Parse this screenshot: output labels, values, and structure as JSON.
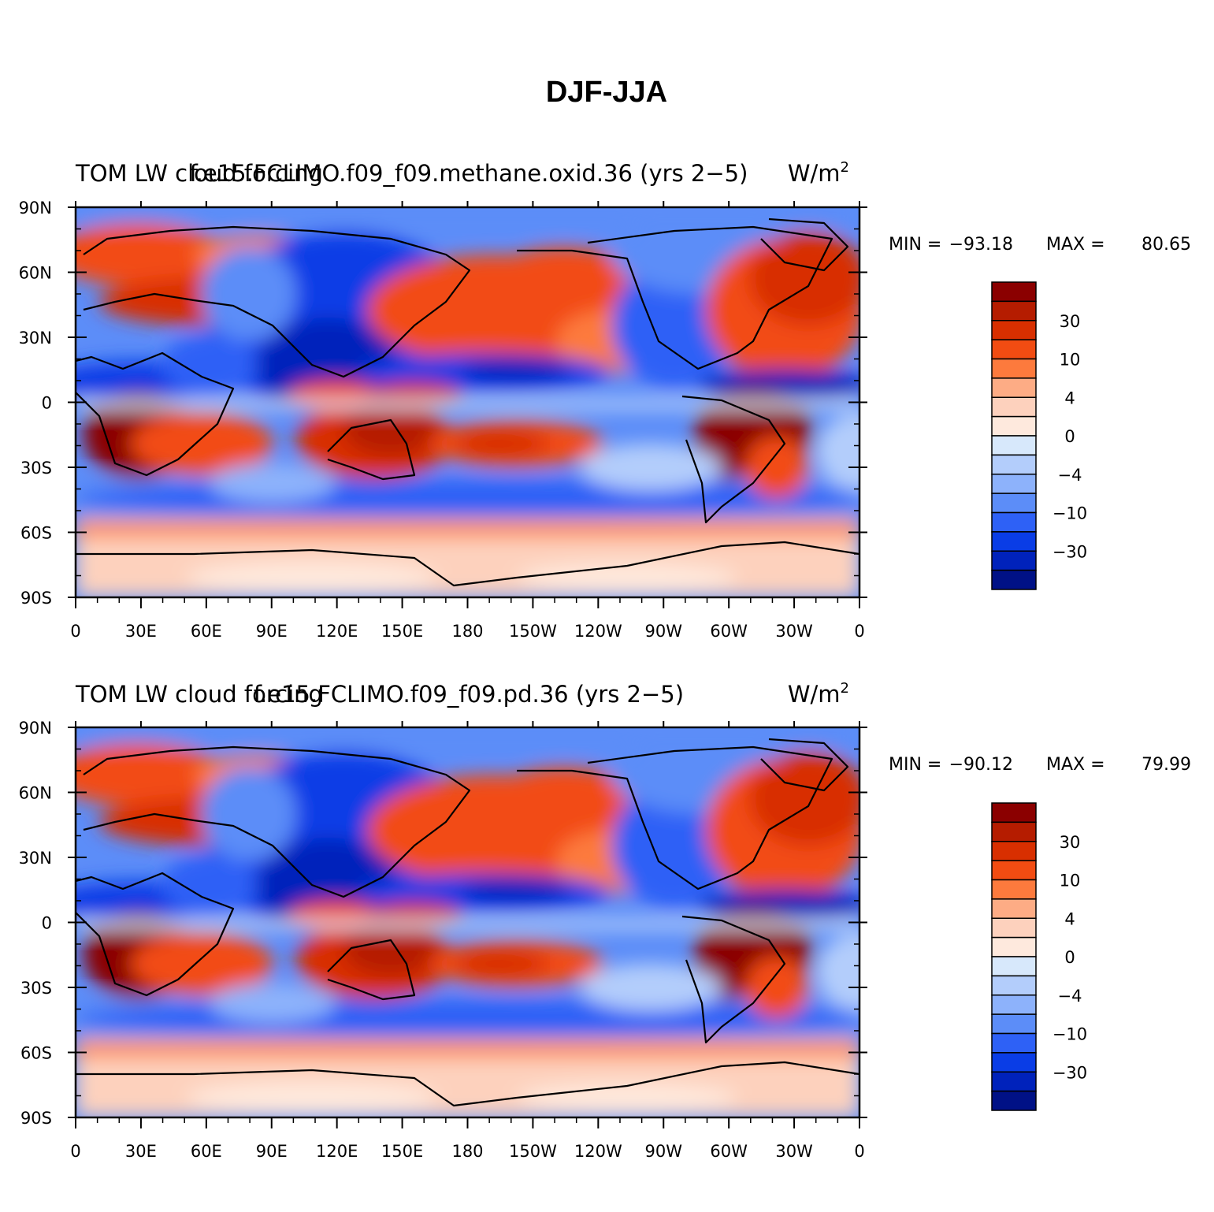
{
  "title": "DJF-JJA",
  "lat_ticks": [
    "90N",
    "60N",
    "30N",
    "0",
    "30S",
    "60S",
    "90S"
  ],
  "lon_ticks": [
    "0",
    "30E",
    "60E",
    "90E",
    "120E",
    "150E",
    "180",
    "150W",
    "120W",
    "90W",
    "60W",
    "30W",
    "0"
  ],
  "colorbar_labels": [
    "30",
    "10",
    "4",
    "0",
    "−4",
    "−10",
    "−30"
  ],
  "colors": [
    "#8b0000",
    "#b51c00",
    "#d82f00",
    "#f24c12",
    "#fd7a3d",
    "#fdac85",
    "#fdd1bd",
    "#fee9dd",
    "#d7e8fb",
    "#b3cdfb",
    "#8db2fb",
    "#5c8df8",
    "#2e61f6",
    "#0a3de6",
    "#0022bb",
    "#001186"
  ],
  "panels": [
    {
      "left_string": "TOM LW cloud forcing",
      "center_string": "f.e15.FCLIMO.f09_f09.methane.oxid.36 (yrs 2−5)",
      "units": "W/m",
      "units_exp": "2",
      "min_label": "MIN =",
      "min_value": "−93.18",
      "max_label": "MAX =",
      "max_value": "80.65"
    },
    {
      "left_string": "TOM LW cloud forcing",
      "center_string": "f.e15.FCLIMO.f09_f09.pd.36 (yrs 2−5)",
      "units": "W/m",
      "units_exp": "2",
      "min_label": "MIN =",
      "min_value": "−90.12",
      "max_label": "MAX =",
      "max_value": "79.99"
    }
  ]
}
